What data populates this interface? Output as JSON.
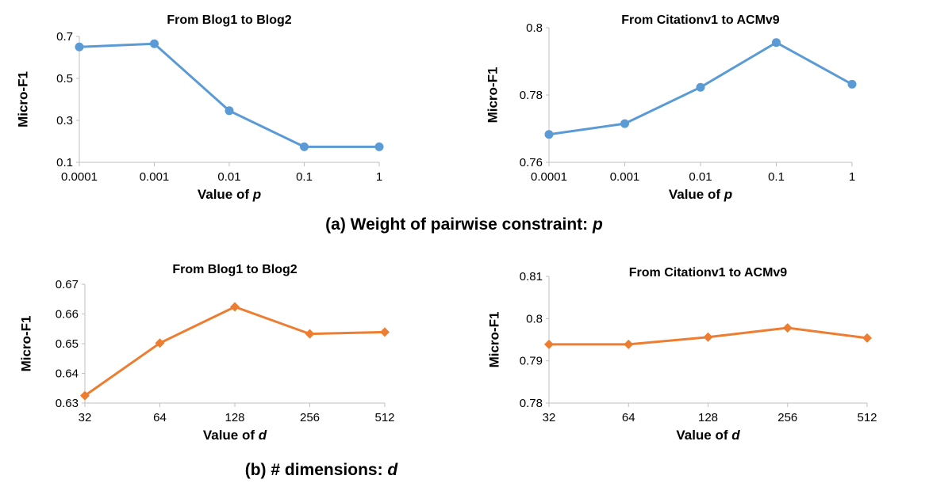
{
  "captions": {
    "a_text": "(a) Weight of pairwise constraint: ",
    "a_var": "p",
    "b_text": "(b) # dimensions: ",
    "b_var": "d"
  },
  "chart_data": [
    {
      "type": "line",
      "title": "From Blog1 to Blog2",
      "xlabel": "Value of ",
      "xlabel_var": "p",
      "ylabel": "Micro-F1",
      "categories": [
        "0.0001",
        "0.001",
        "0.01",
        "0.1",
        "1"
      ],
      "yticks": [
        "0.1",
        "0.3",
        "0.5",
        "0.7"
      ],
      "ylim": [
        0.1,
        0.7
      ],
      "marker": "circle",
      "color": "#5b9bd5",
      "values": [
        0.65,
        0.665,
        0.346,
        0.174,
        0.174
      ]
    },
    {
      "type": "line",
      "title": "From Citationv1 to ACMv9",
      "xlabel": "Value of ",
      "xlabel_var": "p",
      "ylabel": "Micro-F1",
      "categories": [
        "0.0001",
        "0.001",
        "0.01",
        "0.1",
        "1"
      ],
      "yticks": [
        "0.76",
        "0.78",
        "0.8"
      ],
      "ylim": [
        0.76,
        0.8
      ],
      "marker": "circle",
      "color": "#5b9bd5",
      "values": [
        0.7683,
        0.7715,
        0.7823,
        0.7956,
        0.7832
      ]
    },
    {
      "type": "line",
      "title": "From Blog1 to Blog2",
      "xlabel": "Value of ",
      "xlabel_var": "d",
      "ylabel": "Micro-F1",
      "categories": [
        "32",
        "64",
        "128",
        "256",
        "512"
      ],
      "yticks": [
        "0.63",
        "0.64",
        "0.65",
        "0.66",
        "0.67"
      ],
      "ylim": [
        0.63,
        0.67
      ],
      "marker": "diamond",
      "color": "#ed7d31",
      "values": [
        0.6325,
        0.6502,
        0.6624,
        0.6533,
        0.6539
      ]
    },
    {
      "type": "line",
      "title": "From Citationv1 to ACMv9",
      "xlabel": "Value of ",
      "xlabel_var": "d",
      "ylabel": "Micro-F1",
      "categories": [
        "32",
        "64",
        "128",
        "256",
        "512"
      ],
      "yticks": [
        "0.78",
        "0.79",
        "0.8",
        "0.81"
      ],
      "ylim": [
        0.78,
        0.81
      ],
      "marker": "diamond",
      "color": "#ed7d31",
      "values": [
        0.7939,
        0.7939,
        0.7956,
        0.7978,
        0.7954
      ]
    }
  ]
}
